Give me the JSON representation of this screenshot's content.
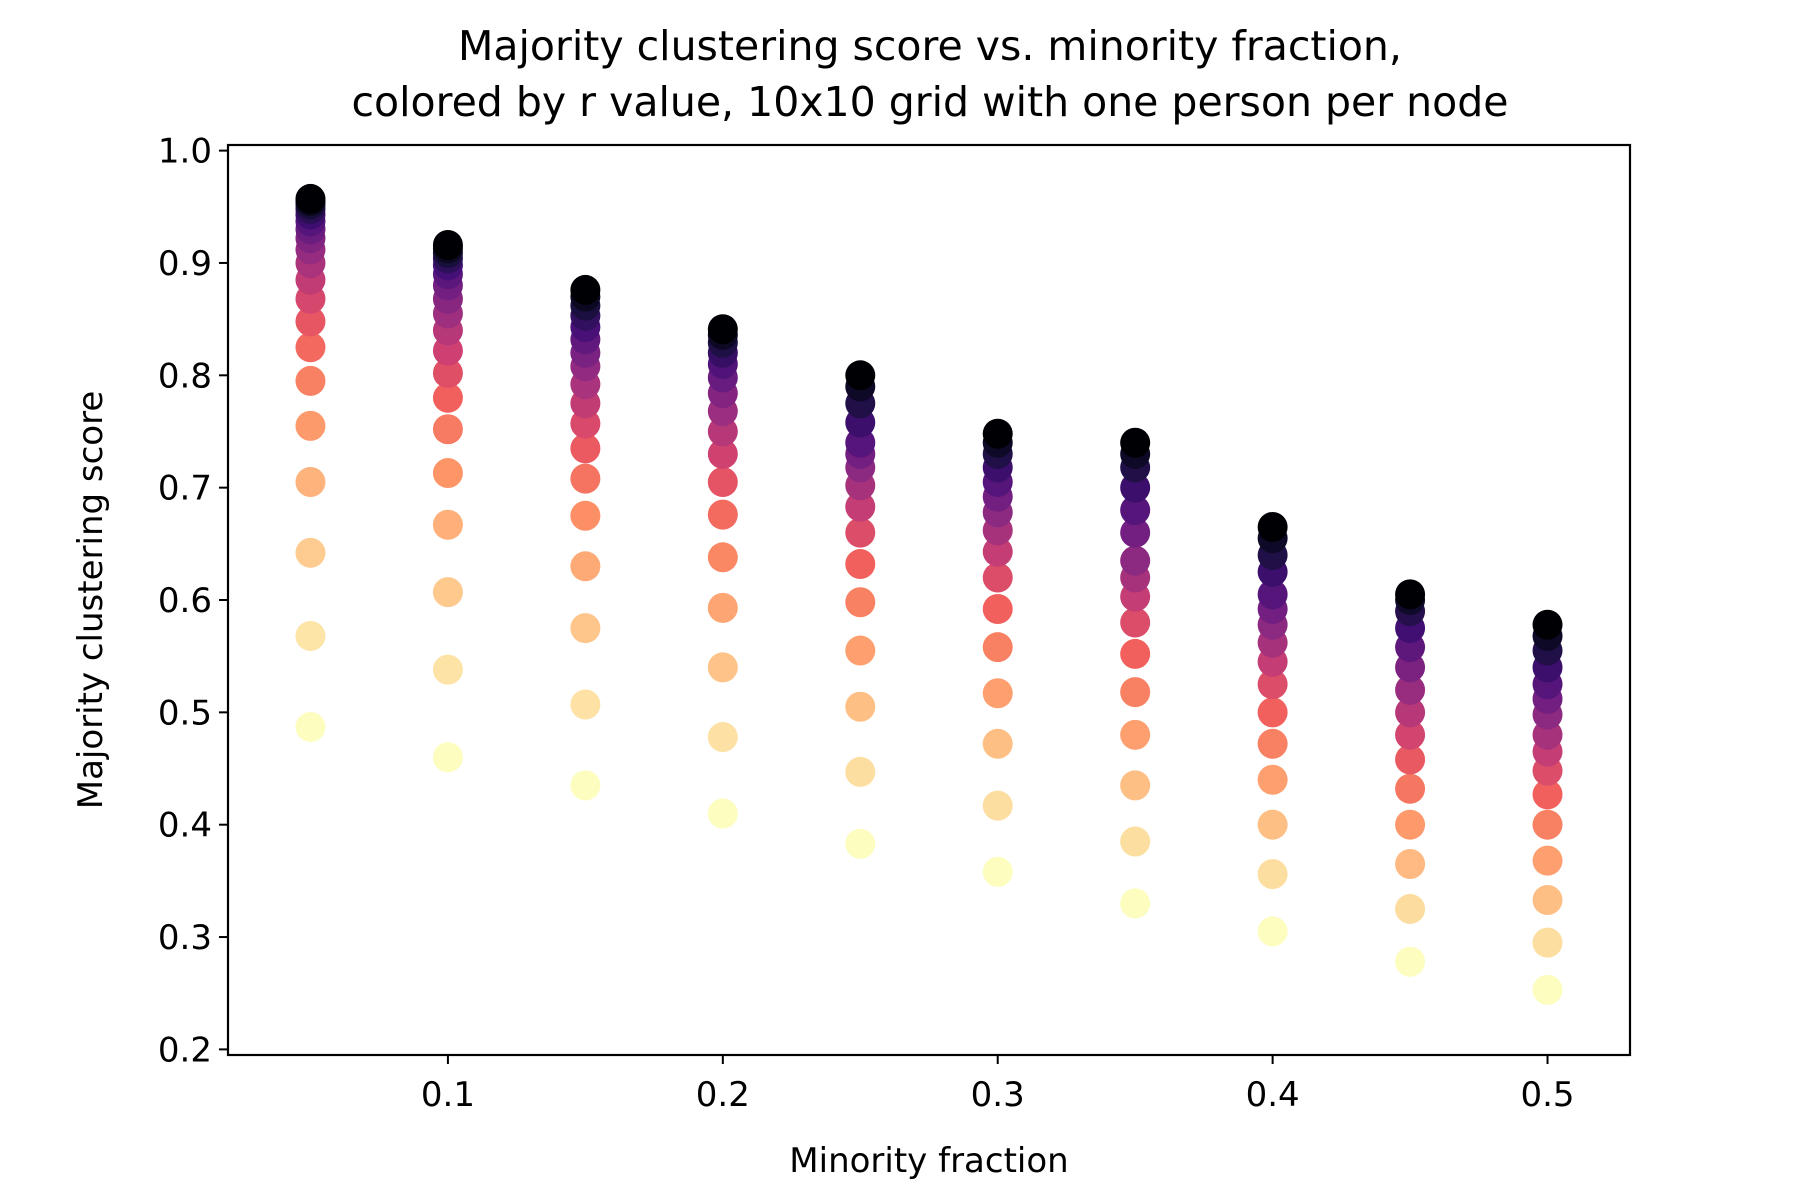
{
  "chart_data": {
    "type": "scatter",
    "title": [
      "Majority clustering score vs. minority fraction,",
      "colored by r value, 10x10 grid with one person per node"
    ],
    "xlabel": "Minority fraction",
    "ylabel": "Majority clustering score",
    "xlim": [
      0.02,
      0.53
    ],
    "ylim": [
      0.195,
      1.005
    ],
    "xticks": [
      {
        "value": 0.1,
        "label": "0.1"
      },
      {
        "value": 0.2,
        "label": "0.2"
      },
      {
        "value": 0.3,
        "label": "0.3"
      },
      {
        "value": 0.4,
        "label": "0.4"
      },
      {
        "value": 0.5,
        "label": "0.5"
      }
    ],
    "yticks": [
      {
        "value": 0.2,
        "label": "0.2"
      },
      {
        "value": 0.3,
        "label": "0.3"
      },
      {
        "value": 0.4,
        "label": "0.4"
      },
      {
        "value": 0.5,
        "label": "0.5"
      },
      {
        "value": 0.6,
        "label": "0.6"
      },
      {
        "value": 0.7,
        "label": "0.7"
      },
      {
        "value": 0.8,
        "label": "0.8"
      },
      {
        "value": 0.9,
        "label": "0.9"
      },
      {
        "value": 1.0,
        "label": "1.0"
      }
    ],
    "grid": false,
    "colormap": "magma",
    "color_encoding": "r value (light yellow = lowest score, black = highest score)",
    "colors": [
      "#fcfdbf",
      "#fec98d",
      "#fd9567",
      "#f1605d",
      "#cd4071",
      "#9e2f7f",
      "#721f81",
      "#440f76",
      "#180f3d",
      "#000004"
    ],
    "series": [
      {
        "x": 0.05,
        "y": [
          0.487,
          0.568,
          0.642,
          0.705,
          0.755,
          0.795,
          0.825,
          0.848,
          0.868,
          0.885,
          0.9,
          0.912,
          0.922,
          0.93,
          0.937,
          0.943,
          0.948,
          0.952,
          0.955,
          0.957
        ]
      },
      {
        "x": 0.1,
        "y": [
          0.46,
          0.538,
          0.607,
          0.667,
          0.713,
          0.752,
          0.78,
          0.802,
          0.822,
          0.84,
          0.855,
          0.868,
          0.88,
          0.89,
          0.898,
          0.904,
          0.909,
          0.913,
          0.916
        ]
      },
      {
        "x": 0.15,
        "y": [
          0.435,
          0.507,
          0.575,
          0.63,
          0.675,
          0.708,
          0.735,
          0.757,
          0.775,
          0.792,
          0.808,
          0.82,
          0.832,
          0.843,
          0.853,
          0.862,
          0.87,
          0.876
        ]
      },
      {
        "x": 0.2,
        "y": [
          0.41,
          0.478,
          0.54,
          0.593,
          0.638,
          0.676,
          0.705,
          0.73,
          0.75,
          0.768,
          0.784,
          0.798,
          0.81,
          0.82,
          0.829,
          0.836,
          0.841
        ]
      },
      {
        "x": 0.25,
        "y": [
          0.383,
          0.447,
          0.505,
          0.555,
          0.598,
          0.632,
          0.66,
          0.683,
          0.702,
          0.718,
          0.73,
          0.74,
          0.758,
          0.775,
          0.79,
          0.8
        ]
      },
      {
        "x": 0.3,
        "y": [
          0.358,
          0.417,
          0.472,
          0.517,
          0.558,
          0.592,
          0.62,
          0.643,
          0.662,
          0.678,
          0.692,
          0.705,
          0.718,
          0.73,
          0.74,
          0.748
        ]
      },
      {
        "x": 0.35,
        "y": [
          0.33,
          0.385,
          0.435,
          0.48,
          0.518,
          0.552,
          0.58,
          0.603,
          0.62,
          0.635,
          0.66,
          0.68,
          0.7,
          0.718,
          0.73,
          0.74
        ]
      },
      {
        "x": 0.4,
        "y": [
          0.305,
          0.356,
          0.4,
          0.44,
          0.472,
          0.5,
          0.525,
          0.545,
          0.562,
          0.578,
          0.592,
          0.605,
          0.625,
          0.64,
          0.655,
          0.665
        ]
      },
      {
        "x": 0.45,
        "y": [
          0.278,
          0.325,
          0.365,
          0.4,
          0.432,
          0.458,
          0.48,
          0.5,
          0.52,
          0.54,
          0.558,
          0.575,
          0.59,
          0.6,
          0.605
        ]
      },
      {
        "x": 0.5,
        "y": [
          0.253,
          0.295,
          0.333,
          0.368,
          0.4,
          0.427,
          0.448,
          0.465,
          0.48,
          0.498,
          0.512,
          0.525,
          0.54,
          0.555,
          0.568,
          0.578
        ]
      }
    ]
  }
}
